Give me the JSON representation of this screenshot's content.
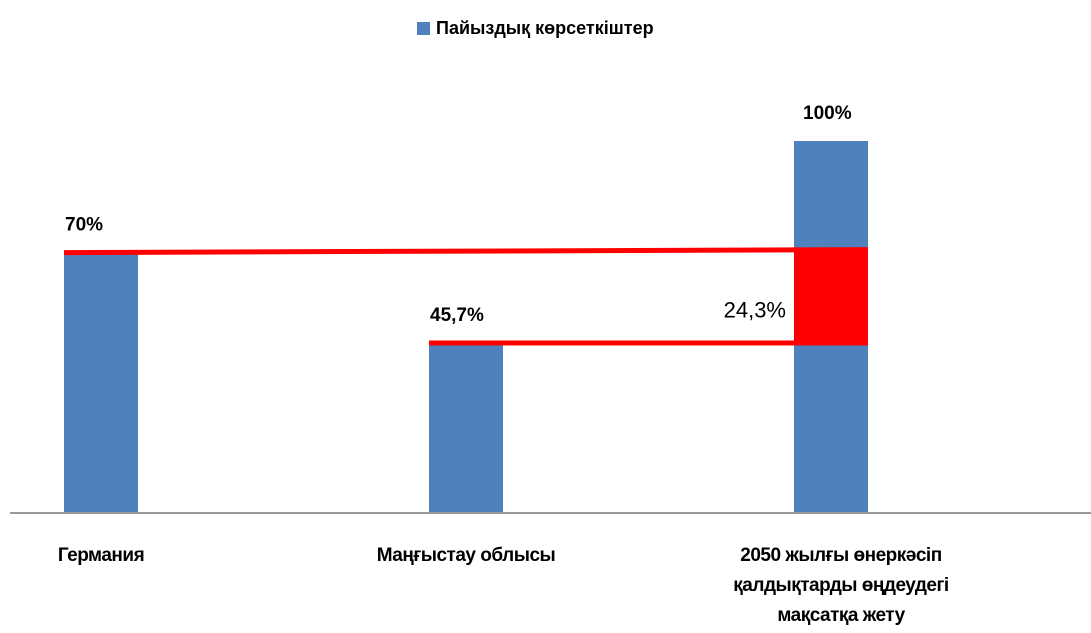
{
  "chart_data": {
    "type": "bar",
    "categories": [
      "Германия",
      "Маңғыстау облысы",
      "2050 жылғы өнеркәсіп қалдықтарды өңдеудегі мақсатқа жету"
    ],
    "series": [
      {
        "name": "Пайыздық көрсеткіштер",
        "color": "#4f81bd",
        "values": [
          70,
          45.7,
          100
        ],
        "value_labels": [
          "70%",
          "45,7%",
          "100%"
        ]
      }
    ],
    "ylim": [
      0,
      100
    ],
    "annotation": "24,3%",
    "highlight_color": "#ff0000",
    "legend": "top"
  }
}
